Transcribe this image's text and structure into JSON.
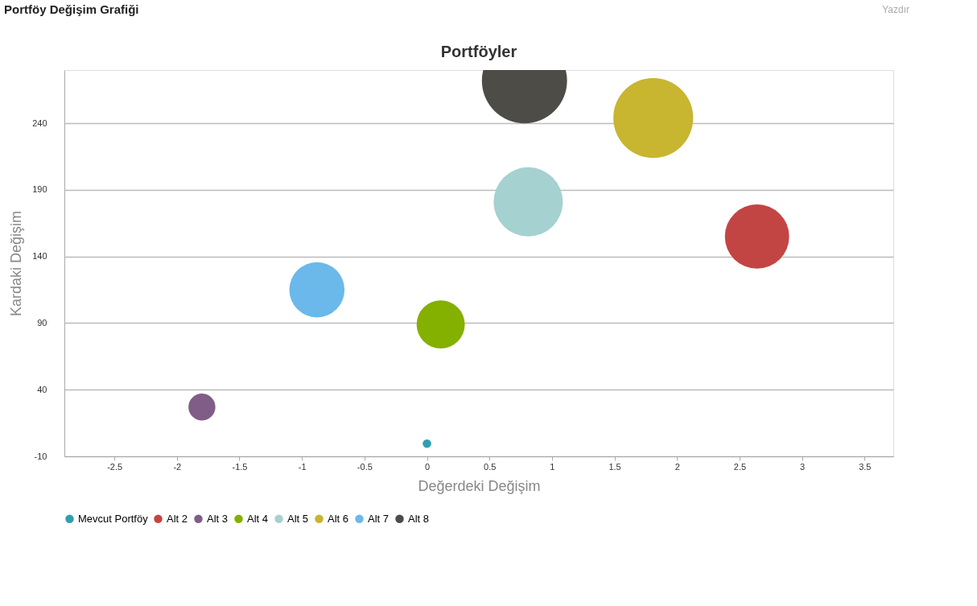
{
  "chart_data": {
    "type": "bubble",
    "title": "Portföyler",
    "xlabel": "Değerdeki Değişim",
    "ylabel": "Kardaki Değişim",
    "annotations": [
      "Portföy Değişim Grafiği",
      "Yazdır"
    ],
    "xlim": [
      -2.9,
      3.73
    ],
    "xticks": [
      -2.5,
      -2,
      -1.5,
      -1,
      -0.5,
      0,
      0.5,
      1,
      1.5,
      2,
      2.5,
      3,
      3.5
    ],
    "ylim": [
      -10,
      280
    ],
    "yticks": [
      -10,
      40,
      90,
      140,
      190,
      240
    ],
    "grid": "y",
    "legend": "bottom",
    "series": [
      {
        "name": "Mevcut Portföy",
        "color": "#2f9fb0",
        "x": [
          0
        ],
        "values": [
          -0.5
        ],
        "sizes": [
          0.01
        ]
      },
      {
        "name": "Alt 2",
        "color": "#c34543",
        "x": [
          2.64
        ],
        "values": [
          155
        ],
        "sizes": [
          0.57
        ]
      },
      {
        "name": "Alt 3",
        "color": "#805d87",
        "x": [
          -1.8
        ],
        "values": [
          27
        ],
        "sizes": [
          0.1
        ]
      },
      {
        "name": "Alt 4",
        "color": "#84b000",
        "x": [
          0.11
        ],
        "values": [
          89
        ],
        "sizes": [
          0.32
        ]
      },
      {
        "name": "Alt 5",
        "color": "#a5d1d0",
        "x": [
          0.81
        ],
        "values": [
          181
        ],
        "sizes": [
          0.66
        ]
      },
      {
        "name": "Alt 6",
        "color": "#c8b530",
        "x": [
          1.81
        ],
        "values": [
          244
        ],
        "sizes": [
          0.88
        ]
      },
      {
        "name": "Alt 7",
        "color": "#6ab9ea",
        "x": [
          -0.88
        ],
        "values": [
          115
        ],
        "sizes": [
          0.42
        ]
      },
      {
        "name": "Alt 8",
        "color": "#4e4c47",
        "x": [
          0.78
        ],
        "values": [
          272
        ],
        "sizes": [
          1
        ]
      }
    ]
  }
}
